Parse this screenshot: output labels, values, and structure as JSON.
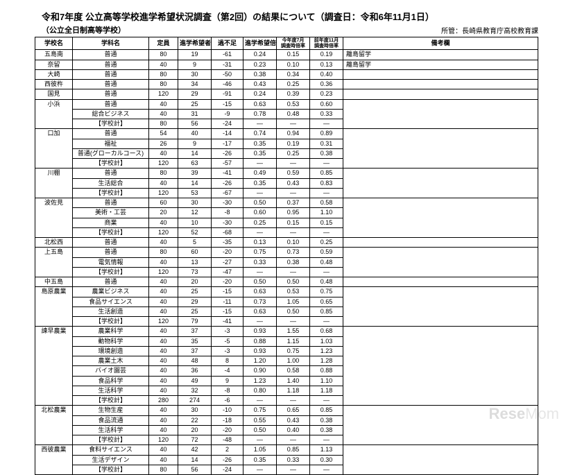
{
  "title": "令和7年度 公立高等学校進学希望状況調査（第2回）の結果について（調査日：令和6年11月1日）",
  "subtitle_left": "（公立全日制高等学校）",
  "subtitle_right": "所管：長崎県教育庁高校教育課",
  "watermark_a": "Rese",
  "watermark_b": "Mom",
  "columns": [
    "学校名",
    "学科名",
    "定員",
    "進学希望者数",
    "過不足",
    "進学希望倍率",
    "今年度7月\n調査時倍率",
    "前年度11月\n調査時倍率",
    "備考欄"
  ],
  "schools": [
    {
      "name": "五島南",
      "rows": [
        [
          "普通",
          "80",
          "19",
          "-61",
          "0.24",
          "0.15",
          "0.19",
          "離島留学"
        ]
      ]
    },
    {
      "name": "奈留",
      "rows": [
        [
          "普通",
          "40",
          "9",
          "-31",
          "0.23",
          "0.10",
          "0.13",
          "離島留学"
        ]
      ]
    },
    {
      "name": "大崎",
      "rows": [
        [
          "普通",
          "80",
          "30",
          "-50",
          "0.38",
          "0.34",
          "0.40",
          ""
        ]
      ]
    },
    {
      "name": "西彼杵",
      "rows": [
        [
          "普通",
          "80",
          "34",
          "-46",
          "0.43",
          "0.25",
          "0.36",
          ""
        ]
      ]
    },
    {
      "name": "国見",
      "rows": [
        [
          "普通",
          "120",
          "29",
          "-91",
          "0.24",
          "0.39",
          "0.23",
          ""
        ]
      ]
    },
    {
      "name": "小浜",
      "rows": [
        [
          "普通",
          "40",
          "25",
          "-15",
          "0.63",
          "0.53",
          "0.60",
          ""
        ],
        [
          "総合ビジネス",
          "40",
          "31",
          "-9",
          "0.78",
          "0.48",
          "0.33",
          ""
        ],
        [
          "【学校計】",
          "80",
          "56",
          "-24",
          "—",
          "—",
          "—",
          ""
        ]
      ]
    },
    {
      "name": "口加",
      "rows": [
        [
          "普通",
          "54",
          "40",
          "-14",
          "0.74",
          "0.94",
          "0.89",
          ""
        ],
        [
          "福祉",
          "26",
          "9",
          "-17",
          "0.35",
          "0.19",
          "0.31",
          ""
        ],
        [
          "普通(グローカルコース)",
          "40",
          "14",
          "-26",
          "0.35",
          "0.25",
          "0.38",
          ""
        ],
        [
          "【学校計】",
          "120",
          "63",
          "-57",
          "—",
          "—",
          "—",
          ""
        ]
      ]
    },
    {
      "name": "川棚",
      "rows": [
        [
          "普通",
          "80",
          "39",
          "-41",
          "0.49",
          "0.59",
          "0.85",
          ""
        ],
        [
          "生活総合",
          "40",
          "14",
          "-26",
          "0.35",
          "0.43",
          "0.83",
          ""
        ],
        [
          "【学校計】",
          "120",
          "53",
          "-67",
          "—",
          "—",
          "—",
          ""
        ]
      ]
    },
    {
      "name": "波佐見",
      "rows": [
        [
          "普通",
          "60",
          "30",
          "-30",
          "0.50",
          "0.37",
          "0.58",
          ""
        ],
        [
          "美術・工芸",
          "20",
          "12",
          "-8",
          "0.60",
          "0.95",
          "1.10",
          ""
        ],
        [
          "商業",
          "40",
          "10",
          "-30",
          "0.25",
          "0.15",
          "0.15",
          ""
        ],
        [
          "【学校計】",
          "120",
          "52",
          "-68",
          "—",
          "—",
          "—",
          ""
        ]
      ]
    },
    {
      "name": "北松西",
      "rows": [
        [
          "普通",
          "40",
          "5",
          "-35",
          "0.13",
          "0.10",
          "0.25",
          ""
        ]
      ]
    },
    {
      "name": "上五島",
      "rows": [
        [
          "普通",
          "80",
          "60",
          "-20",
          "0.75",
          "0.73",
          "0.59",
          ""
        ],
        [
          "電気情報",
          "40",
          "13",
          "-27",
          "0.33",
          "0.38",
          "0.48",
          ""
        ],
        [
          "【学校計】",
          "120",
          "73",
          "-47",
          "—",
          "—",
          "—",
          ""
        ]
      ]
    },
    {
      "name": "中五島",
      "rows": [
        [
          "普通",
          "40",
          "20",
          "-20",
          "0.50",
          "0.50",
          "0.48",
          ""
        ]
      ]
    },
    {
      "name": "島原農業",
      "rows": [
        [
          "農業ビジネス",
          "40",
          "25",
          "-15",
          "0.63",
          "0.53",
          "0.75",
          ""
        ],
        [
          "食品サイエンス",
          "40",
          "29",
          "-11",
          "0.73",
          "1.05",
          "0.65",
          ""
        ],
        [
          "生活創造",
          "40",
          "25",
          "-15",
          "0.63",
          "0.50",
          "0.85",
          ""
        ],
        [
          "【学校計】",
          "120",
          "79",
          "-41",
          "—",
          "—",
          "—",
          ""
        ]
      ]
    },
    {
      "name": "諫早農業",
      "rows": [
        [
          "農業科学",
          "40",
          "37",
          "-3",
          "0.93",
          "1.55",
          "0.68",
          ""
        ],
        [
          "動物科学",
          "40",
          "35",
          "-5",
          "0.88",
          "1.15",
          "1.03",
          ""
        ],
        [
          "環境創造",
          "40",
          "37",
          "-3",
          "0.93",
          "0.75",
          "1.23",
          ""
        ],
        [
          "農業土木",
          "40",
          "48",
          "8",
          "1.20",
          "1.00",
          "1.28",
          ""
        ],
        [
          "バイオ園芸",
          "40",
          "36",
          "-4",
          "0.90",
          "0.58",
          "0.88",
          ""
        ],
        [
          "食品科学",
          "40",
          "49",
          "9",
          "1.23",
          "1.40",
          "1.10",
          ""
        ],
        [
          "生活科学",
          "40",
          "32",
          "-8",
          "0.80",
          "1.18",
          "1.18",
          ""
        ],
        [
          "【学校計】",
          "280",
          "274",
          "-6",
          "—",
          "—",
          "—",
          ""
        ]
      ]
    },
    {
      "name": "北松農業",
      "rows": [
        [
          "生物生産",
          "40",
          "30",
          "-10",
          "0.75",
          "0.65",
          "0.85",
          ""
        ],
        [
          "食品流通",
          "40",
          "22",
          "-18",
          "0.55",
          "0.43",
          "0.38",
          ""
        ],
        [
          "生活科学",
          "40",
          "20",
          "-20",
          "0.50",
          "0.40",
          "0.38",
          ""
        ],
        [
          "【学校計】",
          "120",
          "72",
          "-48",
          "—",
          "—",
          "—",
          ""
        ]
      ]
    },
    {
      "name": "西彼農業",
      "rows": [
        [
          "食料サイエンス",
          "40",
          "42",
          "2",
          "1.05",
          "0.85",
          "1.13",
          ""
        ],
        [
          "生活デザイン",
          "40",
          "14",
          "-26",
          "0.35",
          "0.33",
          "0.30",
          ""
        ],
        [
          "【学校計】",
          "80",
          "56",
          "-24",
          "—",
          "—",
          "—",
          ""
        ]
      ]
    }
  ]
}
